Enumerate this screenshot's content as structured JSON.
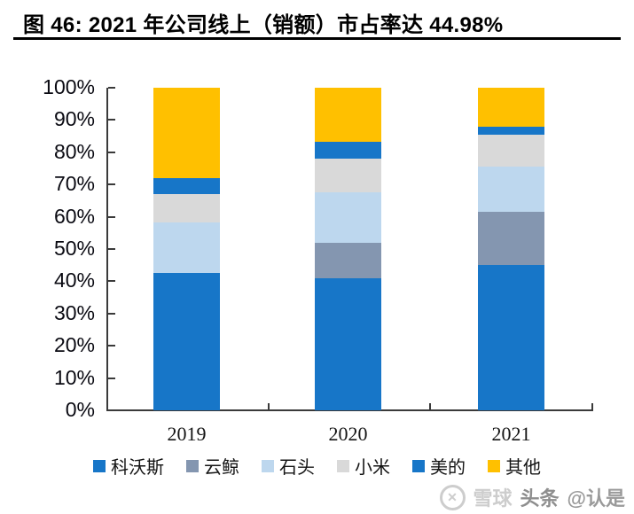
{
  "title": {
    "text": "图 46:  2021 年公司线上（销额）市占率达 44.98%"
  },
  "chart_data": {
    "type": "bar",
    "stacked": true,
    "title": "2021 年公司线上（销额）市占率达 44.98%",
    "categories": [
      "2019",
      "2020",
      "2021"
    ],
    "series": [
      {
        "name": "科沃斯",
        "color": "#1776C8",
        "values": [
          42.6,
          41.0,
          44.98
        ]
      },
      {
        "name": "云鲸",
        "color": "#8496B0",
        "values": [
          0,
          11.0,
          16.5
        ]
      },
      {
        "name": "石头",
        "color": "#BDD7EE",
        "values": [
          15.6,
          15.6,
          14.0
        ]
      },
      {
        "name": "小米",
        "color": "#D9D9D9",
        "values": [
          8.8,
          10.4,
          10.0
        ]
      },
      {
        "name": "美的",
        "color": "#1776C8",
        "values": [
          5.0,
          5.2,
          2.52
        ]
      },
      {
        "name": "其他",
        "color": "#FFC000",
        "values": [
          28.0,
          16.8,
          12.0
        ]
      }
    ],
    "xlabel": "",
    "ylabel": "",
    "ylim": [
      0,
      100
    ],
    "ytick_step": 10,
    "ytick_labels": [
      "100%",
      "90%",
      "80%",
      "70%",
      "60%",
      "50%",
      "40%",
      "30%",
      "20%",
      "10%",
      "0%"
    ],
    "ytick_format": "percent",
    "legend_position": "bottom",
    "grid": false
  },
  "colors": {
    "axis": "#3a3a3a",
    "title_text": "#000000",
    "accent_blue": "#1776C8",
    "accent_orange": "#FFC000"
  },
  "watermark": {
    "logo": "xueqiu-snowball-logo",
    "logo_glyph": "✕",
    "site_label": "雪球",
    "badge_label": "头条",
    "handle_label": "@认是"
  }
}
